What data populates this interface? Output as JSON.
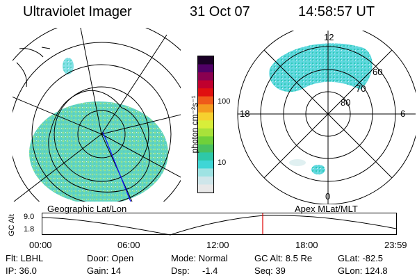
{
  "header": {
    "instrument": "Ultraviolet Imager",
    "date": "31 Oct 07",
    "time": "14:58:57 UT"
  },
  "left_panel": {
    "label": "Geographic Lat/Lon"
  },
  "right_panel": {
    "label": "Apex  MLat/MLT",
    "lat_labels": [
      "60",
      "70",
      "80"
    ],
    "mlt_labels": {
      "top": "12",
      "left": "18",
      "right": "6",
      "bottom": "0"
    }
  },
  "colorbar": {
    "unit": "photon cm⁻²s⁻¹",
    "tick_labels": [
      "100",
      "10"
    ],
    "colors": [
      "#e8e8e8",
      "#cfe6ea",
      "#9ee3e3",
      "#3fd6d6",
      "#2ec8a8",
      "#48c060",
      "#6fd03a",
      "#a8e23a",
      "#d8ee3a",
      "#f6d12f",
      "#f49a1f",
      "#ef5a1a",
      "#e01010",
      "#c0002e",
      "#8a0050",
      "#500066",
      "#1a0026"
    ]
  },
  "timeline": {
    "y_axis_label": "GC Alt",
    "y_tick_labels": [
      "9.0",
      "1.8"
    ],
    "x_tick_labels": [
      "00:00",
      "06:00",
      "12:00",
      "18:00",
      "23:59"
    ],
    "marker_color": "#e00000"
  },
  "status": {
    "row1": {
      "flt": "Flt: LBHL",
      "door": "Door: Open",
      "mode": "Mode: Normal",
      "gc_alt": "GC Alt: 8.5 Re",
      "glat": "GLat: -82.5"
    },
    "row2": {
      "ip": "IP: 36.0",
      "gain": "Gain: 14",
      "dsp_label": "Dsp:",
      "dsp_value": "-1.4",
      "seq": "Seq: 39",
      "glon": "GLon: 124.8"
    }
  }
}
